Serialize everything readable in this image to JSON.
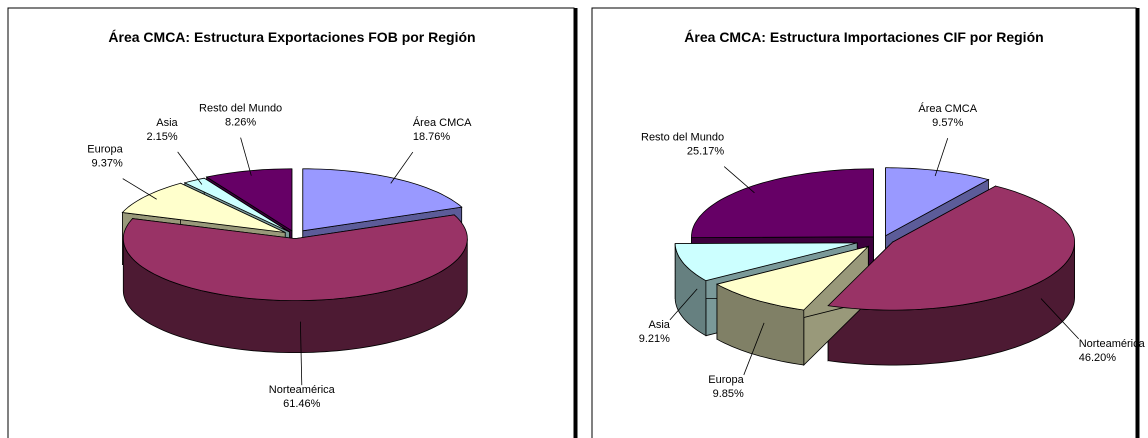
{
  "chart_data": [
    {
      "type": "pie3d",
      "title": "Área CMCA: Estructura Exportaciones FOB por Región",
      "categories": [
        "Área CMCA",
        "Norteamérica",
        "Europa",
        "Asia",
        "Resto del Mundo"
      ],
      "values": [
        18.76,
        61.46,
        9.37,
        2.15,
        8.26
      ],
      "value_labels": [
        "18.76%",
        "61.46%",
        "9.37%",
        "2.15%",
        "8.26%"
      ],
      "colors": [
        "#9999ff",
        "#993366",
        "#ffffcc",
        "#ccffff",
        "#660066"
      ]
    },
    {
      "type": "pie3d",
      "title": "Área CMCA: Estructura Importaciones CIF por Región",
      "categories": [
        "Área CMCA",
        "Norteamérica",
        "Europa",
        "Asia",
        "Resto del Mundo"
      ],
      "values": [
        9.57,
        46.2,
        9.85,
        9.21,
        25.17
      ],
      "value_labels": [
        "9.57%",
        "46.20%",
        "9.85%",
        "9.21%",
        "25.17%"
      ],
      "colors": [
        "#9999ff",
        "#993366",
        "#ffffcc",
        "#ccffff",
        "#660066"
      ]
    }
  ]
}
